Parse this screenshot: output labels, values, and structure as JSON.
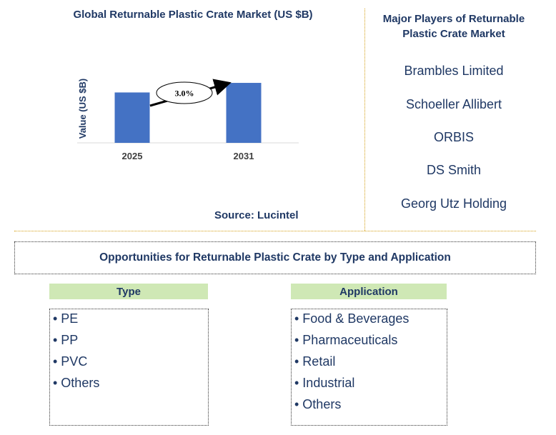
{
  "chart_data": {
    "type": "bar",
    "title": "Global Returnable Plastic Crate Market (US $B)",
    "ylabel": "Value (US $B)",
    "categories": [
      "2025",
      "2031"
    ],
    "values": [
      1.0,
      1.19
    ],
    "cagr_label": "3.0%",
    "bar_color": "#4472c4",
    "grid": false
  },
  "source": "Source: Lucintel",
  "players": {
    "title": "Major Players of Returnable Plastic Crate Market",
    "items": [
      "Brambles Limited",
      "Schoeller Allibert",
      "ORBIS",
      "DS Smith",
      "Georg Utz Holding"
    ]
  },
  "opportunities": {
    "title": "Opportunities for Returnable Plastic Crate by Type and Application",
    "type": {
      "header": "Type",
      "items": [
        "• PE",
        "• PP",
        "• PVC",
        "• Others"
      ]
    },
    "application": {
      "header": "Application",
      "items": [
        "• Food & Beverages",
        "• Pharmaceuticals",
        "• Retail",
        "• Industrial",
        "• Others"
      ]
    }
  },
  "colors": {
    "title_text": "#1f3864",
    "bar": "#4472c4",
    "segment_header_bg": "#cfe8b5",
    "divider": "#d4a017"
  }
}
